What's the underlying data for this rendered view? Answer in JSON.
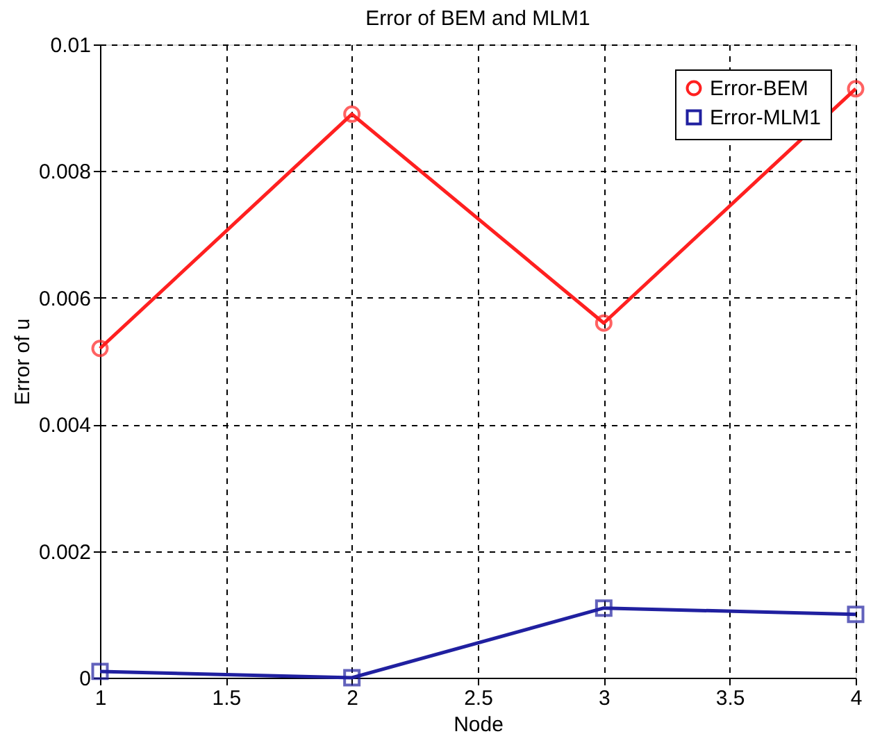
{
  "chart_data": {
    "type": "line",
    "title": "Error of BEM and MLM1",
    "xlabel": "Node",
    "ylabel": "Error of u",
    "x": [
      1,
      2,
      3,
      4
    ],
    "series": [
      {
        "name": "Error-BEM",
        "color": "#ff2020",
        "marker": "circle",
        "values": [
          0.0052,
          0.0089,
          0.0056,
          0.0093
        ]
      },
      {
        "name": "Error-MLM1",
        "color": "#2020a0",
        "marker": "square",
        "values": [
          0.0001,
          0.0,
          0.0011,
          0.001
        ]
      }
    ],
    "xlim": [
      1,
      4
    ],
    "xticks": [
      1,
      1.5,
      2,
      2.5,
      3,
      3.5,
      4
    ],
    "ylim": [
      0,
      0.01
    ],
    "yticks": [
      0,
      0.002,
      0.004,
      0.006,
      0.008,
      0.01
    ],
    "grid": true,
    "legend": "top right",
    "line_style": "solid"
  }
}
